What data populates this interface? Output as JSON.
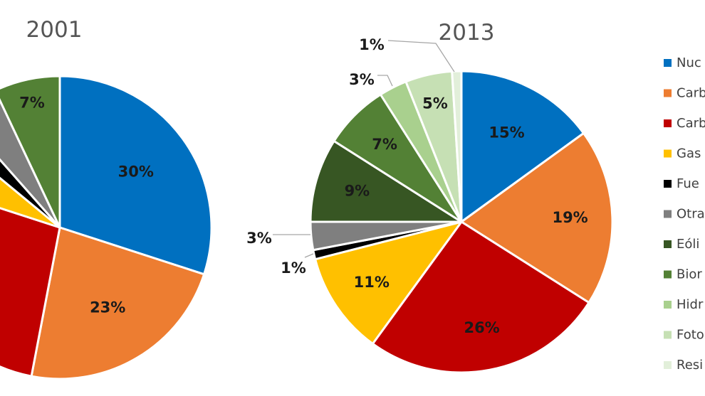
{
  "chart_data": [
    {
      "type": "pie",
      "title": "2001",
      "slices": [
        {
          "category": "Nuclear",
          "value": 30,
          "label": "30%",
          "color": "#0070C0"
        },
        {
          "category": "Carbón importado",
          "value": 23,
          "label": "23%",
          "color": "#ED7D31"
        },
        {
          "category": "Carbón nacional",
          "value": 27,
          "label": "",
          "color": "#C00000"
        },
        {
          "category": "Gas natural",
          "value": 6,
          "label": "",
          "color": "#FFC000"
        },
        {
          "category": "Fuel",
          "value": 2.5,
          "label": "",
          "color": "#000000"
        },
        {
          "category": "Otras",
          "value": 4.5,
          "label": "",
          "color": "#7F7F7F"
        },
        {
          "category": "Biomasa",
          "value": 7,
          "label": "7%",
          "color": "#538135"
        }
      ]
    },
    {
      "type": "pie",
      "title": "2013",
      "slices": [
        {
          "category": "Nuclear",
          "value": 15,
          "label": "15%",
          "color": "#0070C0"
        },
        {
          "category": "Carbón importado",
          "value": 19,
          "label": "19%",
          "color": "#ED7D31"
        },
        {
          "category": "Carbón nacional",
          "value": 26,
          "label": "26%",
          "color": "#C00000"
        },
        {
          "category": "Gas natural",
          "value": 11,
          "label": "11%",
          "color": "#FFC000"
        },
        {
          "category": "Fuel",
          "value": 1,
          "label": "1%",
          "color": "#000000"
        },
        {
          "category": "Otras",
          "value": 3,
          "label": "3%",
          "color": "#7F7F7F"
        },
        {
          "category": "Eólica",
          "value": 9,
          "label": "9%",
          "color": "#375623"
        },
        {
          "category": "Biomasa",
          "value": 7,
          "label": "7%",
          "color": "#538135"
        },
        {
          "category": "Hidráulica",
          "value": 3,
          "label": "3%",
          "color": "#A9D08E"
        },
        {
          "category": "Fotovoltaica",
          "value": 5,
          "label": "5%",
          "color": "#C6E0B4"
        },
        {
          "category": "Residuos",
          "value": 1,
          "label": "1%",
          "color": "#E2EFDA"
        }
      ]
    }
  ],
  "legend": {
    "placement": "right",
    "items": [
      {
        "label": "Nuc",
        "color": "#0070C0"
      },
      {
        "label": "Carb",
        "color": "#ED7D31"
      },
      {
        "label": "Carb",
        "color": "#C00000"
      },
      {
        "label": "Gas",
        "color": "#FFC000"
      },
      {
        "label": "Fue",
        "color": "#000000"
      },
      {
        "label": "Otra",
        "color": "#7F7F7F"
      },
      {
        "label": "Eóli",
        "color": "#375623"
      },
      {
        "label": "Bior",
        "color": "#538135"
      },
      {
        "label": "Hidr",
        "color": "#A9D08E"
      },
      {
        "label": "Foto",
        "color": "#C6E0B4"
      },
      {
        "label": "Resi",
        "color": "#E2EFDA"
      }
    ]
  }
}
